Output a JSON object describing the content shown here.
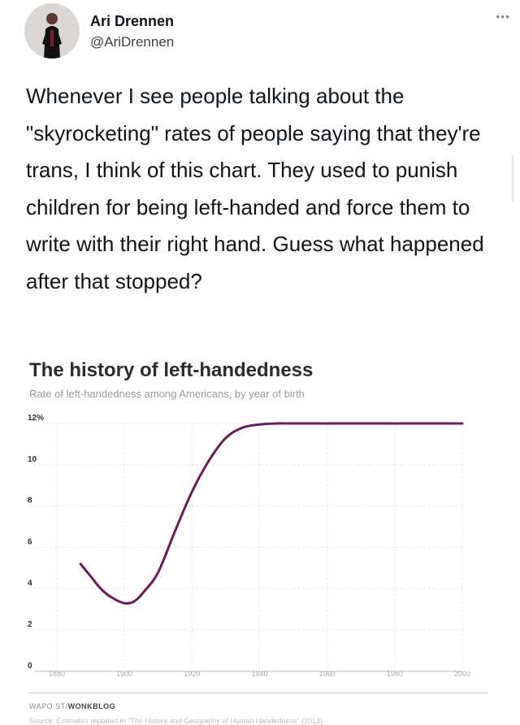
{
  "tweet": {
    "author_name": "Ari Drennen",
    "author_handle": "@AriDrennen",
    "more_icon": "more-horizontal-icon",
    "text": "Whenever I see people talking about the \"skyrocketing\" rates of people saying that they're trans, I think of this chart. They used to punish children for being left-handed and force them to write with their right hand. Guess what happened after that stopped?"
  },
  "chart": {
    "credit_prefix": "WAPO.ST/",
    "credit_brand": "WONKBLOG",
    "source": "Source: Estimates reported in \"The History and Geography of Human Handedness\" (2013)"
  },
  "chart_data": {
    "type": "line",
    "title": "The history of left-handedness",
    "subtitle": "Rate of left-handedness among Americans, by year of birth",
    "x": [
      1887,
      1890,
      1893,
      1896,
      1900,
      1903,
      1906,
      1910,
      1915,
      1920,
      1925,
      1930,
      1935,
      1940,
      1945,
      1950,
      1960,
      1970,
      1980,
      1990,
      2000
    ],
    "y": [
      5.2,
      4.6,
      4.0,
      3.6,
      3.3,
      3.4,
      3.9,
      4.8,
      6.8,
      8.7,
      10.2,
      11.3,
      11.8,
      11.95,
      12.0,
      12.0,
      12.0,
      12.0,
      12.0,
      12.0,
      12.0
    ],
    "xlim": [
      1880,
      2000
    ],
    "ylim": [
      0,
      12
    ],
    "x_ticks": [
      "1880",
      "1900",
      "1920",
      "1940",
      "1960",
      "1980",
      "2000"
    ],
    "y_ticks": [
      "0",
      "2",
      "4",
      "6",
      "8",
      "10",
      "12%"
    ],
    "grid": true,
    "line_color": "#6b1b5c"
  }
}
